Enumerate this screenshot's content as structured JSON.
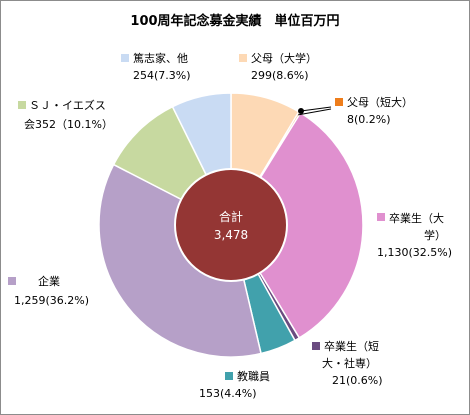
{
  "chart_data": {
    "type": "pie",
    "title": "100周年記念募金実績　単位百万円",
    "center": {
      "label": "合計",
      "value": "3,478"
    },
    "slices": [
      {
        "name": "父母（大学）",
        "value": 299,
        "pct": "8.6%",
        "value_text": "299(8.6%)",
        "color": "#fdd9b5"
      },
      {
        "name": "父母（短大）",
        "value": 8,
        "pct": "0.2%",
        "value_text": "8(0.2%)",
        "color": "#ee7d1b"
      },
      {
        "name": "卒業生（大学）",
        "value": 1130,
        "pct": "32.5%",
        "value_text": "1,130(32.5%)",
        "color": "#e090cf"
      },
      {
        "name": "卒業生（短大・社専）",
        "value": 21,
        "pct": "0.6%",
        "value_text": "21(0.6%)",
        "color": "#6a4b80"
      },
      {
        "name": "教職員",
        "value": 153,
        "pct": "4.4%",
        "value_text": "153(4.4%)",
        "color": "#41a1ac"
      },
      {
        "name": "企業",
        "value": 1259,
        "pct": "36.2%",
        "value_text": "1,259(36.2%)",
        "color": "#b6a0c8"
      },
      {
        "name": "ＳＪ・イエズス会",
        "value": 352,
        "pct": "10.1%",
        "value_text": "352(10.1%)",
        "color": "#c7d9a0"
      },
      {
        "name": "篤志家、他",
        "value": 254,
        "pct": "7.3%",
        "value_text": "254(7.3%)",
        "color": "#c9dbf3"
      }
    ],
    "labels": [
      {
        "lines": [
          "篤志家、他",
          "254(7.3%)"
        ]
      },
      {
        "lines": [
          "父母（大学）",
          "299(8.6%)"
        ]
      },
      {
        "lines": [
          "父母（短大）",
          "8(0.2%)"
        ]
      },
      {
        "lines": [
          "卒業生（大",
          "学）",
          "1,130(32.5%)"
        ]
      },
      {
        "lines": [
          "卒業生（短",
          "大・社専）",
          "21(0.6%)"
        ]
      },
      {
        "lines": [
          "教職員",
          "153(4.4%)"
        ]
      },
      {
        "lines": [
          "企業",
          "1,259(36.2%)"
        ]
      },
      {
        "lines": [
          "ＳＪ・イエズス",
          "会352（10.1%）"
        ]
      }
    ],
    "center_color": "#943634",
    "legend": "none"
  }
}
